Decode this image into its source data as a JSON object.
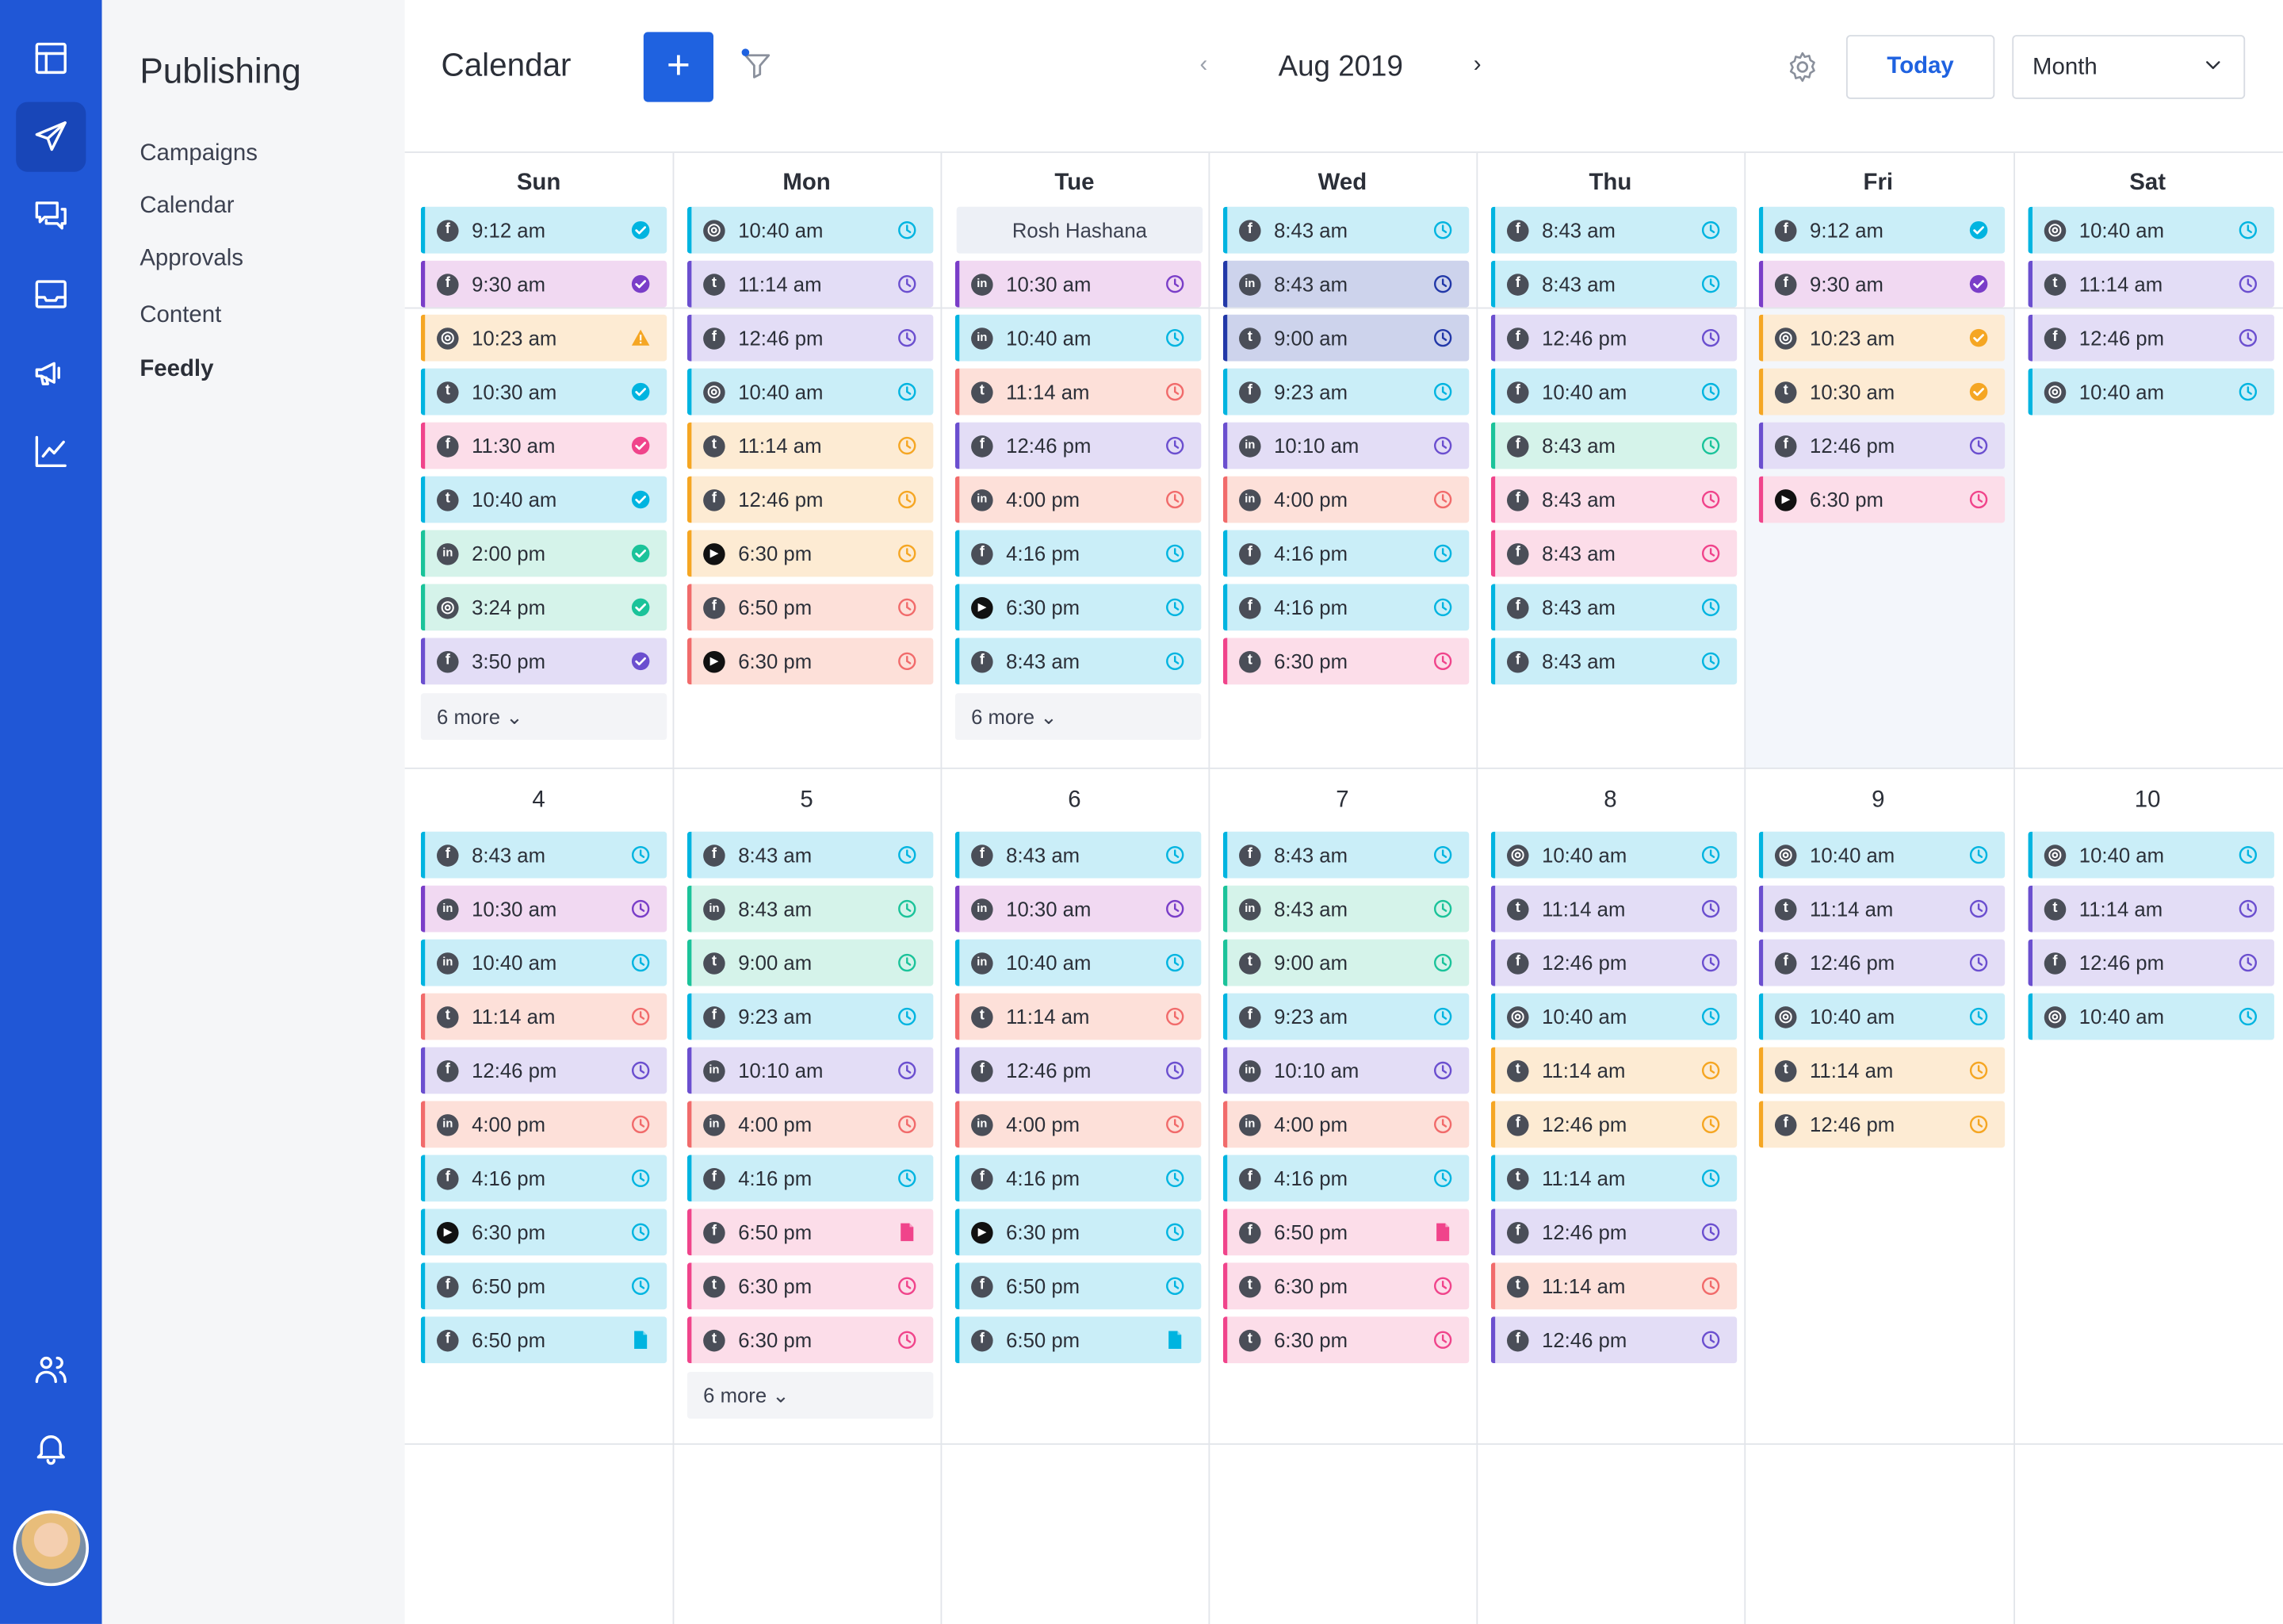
{
  "sidebar": {
    "section_title": "Publishing",
    "nav": [
      "Campaigns",
      "Calendar",
      "Approvals",
      "Content",
      "Feedly"
    ]
  },
  "header": {
    "title": "Calendar",
    "add_label": "+",
    "period": "Aug 2019",
    "today_label": "Today",
    "view_label": "Month"
  },
  "weekdays": [
    "Sun",
    "Mon",
    "Tue",
    "Wed",
    "Thu",
    "Fri",
    "Sat"
  ],
  "week2_days": [
    "4",
    "5",
    "6",
    "7",
    "8",
    "9",
    "10"
  ],
  "colors": {
    "cyan": "#00b4e0",
    "purple": "#7a3ec8",
    "orange": "#f5a623",
    "red": "#f16b6b",
    "pink": "#f0448b",
    "teal": "#1bc39a",
    "lavender": "#6b4fcf",
    "navy": "#2238a8",
    "brand": "#2057d6"
  },
  "week1": [
    {
      "events": [
        [
          "fb",
          "9:12 am",
          "cyan",
          "done"
        ],
        [
          "fb",
          "9:30 am",
          "purple",
          "done"
        ],
        [
          "ig",
          "10:23 am",
          "orange",
          "warn"
        ],
        [
          "tw",
          "10:30 am",
          "cyan",
          "done"
        ],
        [
          "fb",
          "11:30 am",
          "pink",
          "done"
        ],
        [
          "tw",
          "10:40 am",
          "cyan",
          "done"
        ],
        [
          "in",
          "2:00 pm",
          "teal",
          "done"
        ],
        [
          "ig",
          "3:24 pm",
          "teal",
          "done"
        ],
        [
          "fb",
          "3:50 pm",
          "lavender",
          "done"
        ]
      ],
      "more": "6 more"
    },
    {
      "events": [
        [
          "ig",
          "10:40 am",
          "cyan",
          "clock"
        ],
        [
          "tw",
          "11:14 am",
          "lavender",
          "clock"
        ],
        [
          "fb",
          "12:46 pm",
          "lavender",
          "clock"
        ],
        [
          "ig",
          "10:40 am",
          "cyan",
          "clock"
        ],
        [
          "tw",
          "11:14 am",
          "orange",
          "clock"
        ],
        [
          "fb",
          "12:46 pm",
          "orange",
          "clock"
        ],
        [
          "yt",
          "6:30 pm",
          "orange",
          "clock"
        ],
        [
          "fb",
          "6:50 pm",
          "red",
          "clock"
        ],
        [
          "yt",
          "6:30 pm",
          "red",
          "clock"
        ]
      ]
    },
    {
      "holiday": "Rosh Hashana",
      "events": [
        [
          "in",
          "10:30 am",
          "purple",
          "clock"
        ],
        [
          "in",
          "10:40 am",
          "cyan",
          "clock"
        ],
        [
          "tw",
          "11:14 am",
          "red",
          "clock"
        ],
        [
          "fb",
          "12:46 pm",
          "lavender",
          "clock"
        ],
        [
          "in",
          "4:00 pm",
          "red",
          "clock"
        ],
        [
          "fb",
          "4:16 pm",
          "cyan",
          "clock"
        ],
        [
          "yt",
          "6:30 pm",
          "cyan",
          "clock"
        ],
        [
          "fb",
          "8:43 am",
          "cyan",
          "clock"
        ]
      ],
      "more": "6 more"
    },
    {
      "events": [
        [
          "fb",
          "8:43 am",
          "cyan",
          "clock"
        ],
        [
          "in",
          "8:43 am",
          "navy",
          "clock"
        ],
        [
          "tw",
          "9:00 am",
          "navy",
          "clock"
        ],
        [
          "fb",
          "9:23 am",
          "cyan",
          "clock"
        ],
        [
          "in",
          "10:10 am",
          "lavender",
          "clock"
        ],
        [
          "in",
          "4:00 pm",
          "red",
          "clock"
        ],
        [
          "fb",
          "4:16 pm",
          "cyan",
          "clock"
        ],
        [
          "fb",
          "4:16 pm",
          "cyan",
          "clock"
        ],
        [
          "tw",
          "6:30 pm",
          "pink",
          "clock"
        ]
      ]
    },
    {
      "events": [
        [
          "fb",
          "8:43 am",
          "cyan",
          "clock"
        ],
        [
          "fb",
          "8:43 am",
          "cyan",
          "clock"
        ],
        [
          "fb",
          "12:46 pm",
          "lavender",
          "clock"
        ],
        [
          "fb",
          "10:40 am",
          "cyan",
          "clock"
        ],
        [
          "fb",
          "8:43 am",
          "teal",
          "clock"
        ],
        [
          "fb",
          "8:43 am",
          "pink",
          "clock"
        ],
        [
          "fb",
          "8:43 am",
          "pink",
          "clock"
        ],
        [
          "fb",
          "8:43 am",
          "cyan",
          "clock"
        ],
        [
          "fb",
          "8:43 am",
          "cyan",
          "clock"
        ]
      ]
    },
    {
      "events": [
        [
          "fb",
          "9:12 am",
          "cyan",
          "done"
        ],
        [
          "fb",
          "9:30 am",
          "purple",
          "done"
        ],
        [
          "ig",
          "10:23 am",
          "orange",
          "done"
        ],
        [
          "tw",
          "10:30 am",
          "orange",
          "done"
        ],
        [
          "fb",
          "12:46 pm",
          "lavender",
          "clock"
        ],
        [
          "yt",
          "6:30 pm",
          "pink",
          "clock"
        ]
      ]
    },
    {
      "events": [
        [
          "ig",
          "10:40 am",
          "cyan",
          "clock"
        ],
        [
          "tw",
          "11:14 am",
          "lavender",
          "clock"
        ],
        [
          "fb",
          "12:46 pm",
          "lavender",
          "clock"
        ],
        [
          "ig",
          "10:40 am",
          "cyan",
          "clock"
        ]
      ]
    }
  ],
  "week2": [
    {
      "events": [
        [
          "fb",
          "8:43 am",
          "cyan",
          "clock"
        ],
        [
          "in",
          "10:30 am",
          "purple",
          "clock"
        ],
        [
          "in",
          "10:40 am",
          "cyan",
          "clock"
        ],
        [
          "tw",
          "11:14 am",
          "red",
          "clock"
        ],
        [
          "fb",
          "12:46 pm",
          "lavender",
          "clock"
        ],
        [
          "in",
          "4:00 pm",
          "red",
          "clock"
        ],
        [
          "fb",
          "4:16 pm",
          "cyan",
          "clock"
        ],
        [
          "yt",
          "6:30 pm",
          "cyan",
          "clock"
        ],
        [
          "fb",
          "6:50 pm",
          "cyan",
          "clock"
        ],
        [
          "fb",
          "6:50 pm",
          "cyan",
          "doc"
        ]
      ]
    },
    {
      "events": [
        [
          "fb",
          "8:43 am",
          "cyan",
          "clock"
        ],
        [
          "in",
          "8:43 am",
          "teal",
          "clock"
        ],
        [
          "tw",
          "9:00 am",
          "teal",
          "clock"
        ],
        [
          "fb",
          "9:23 am",
          "cyan",
          "clock"
        ],
        [
          "in",
          "10:10 am",
          "lavender",
          "clock"
        ],
        [
          "in",
          "4:00 pm",
          "red",
          "clock"
        ],
        [
          "fb",
          "4:16 pm",
          "cyan",
          "clock"
        ],
        [
          "fb",
          "6:50 pm",
          "pink",
          "doc"
        ],
        [
          "tw",
          "6:30 pm",
          "pink",
          "clock"
        ],
        [
          "tw",
          "6:30 pm",
          "pink",
          "clock"
        ]
      ],
      "more": "6 more"
    },
    {
      "events": [
        [
          "fb",
          "8:43 am",
          "cyan",
          "clock"
        ],
        [
          "in",
          "10:30 am",
          "purple",
          "clock"
        ],
        [
          "in",
          "10:40 am",
          "cyan",
          "clock"
        ],
        [
          "tw",
          "11:14 am",
          "red",
          "clock"
        ],
        [
          "fb",
          "12:46 pm",
          "lavender",
          "clock"
        ],
        [
          "in",
          "4:00 pm",
          "red",
          "clock"
        ],
        [
          "fb",
          "4:16 pm",
          "cyan",
          "clock"
        ],
        [
          "yt",
          "6:30 pm",
          "cyan",
          "clock"
        ],
        [
          "fb",
          "6:50 pm",
          "cyan",
          "clock"
        ],
        [
          "fb",
          "6:50 pm",
          "cyan",
          "doc"
        ]
      ]
    },
    {
      "events": [
        [
          "fb",
          "8:43 am",
          "cyan",
          "clock"
        ],
        [
          "in",
          "8:43 am",
          "teal",
          "clock"
        ],
        [
          "tw",
          "9:00 am",
          "teal",
          "clock"
        ],
        [
          "fb",
          "9:23 am",
          "cyan",
          "clock"
        ],
        [
          "in",
          "10:10 am",
          "lavender",
          "clock"
        ],
        [
          "in",
          "4:00 pm",
          "red",
          "clock"
        ],
        [
          "fb",
          "4:16 pm",
          "cyan",
          "clock"
        ],
        [
          "fb",
          "6:50 pm",
          "pink",
          "doc"
        ],
        [
          "tw",
          "6:30 pm",
          "pink",
          "clock"
        ],
        [
          "tw",
          "6:30 pm",
          "pink",
          "clock"
        ]
      ]
    },
    {
      "events": [
        [
          "ig",
          "10:40 am",
          "cyan",
          "clock"
        ],
        [
          "tw",
          "11:14 am",
          "lavender",
          "clock"
        ],
        [
          "fb",
          "12:46 pm",
          "lavender",
          "clock"
        ],
        [
          "ig",
          "10:40 am",
          "cyan",
          "clock"
        ],
        [
          "tw",
          "11:14 am",
          "orange",
          "clock"
        ],
        [
          "fb",
          "12:46 pm",
          "orange",
          "clock"
        ],
        [
          "tw",
          "11:14 am",
          "cyan",
          "clock"
        ],
        [
          "fb",
          "12:46 pm",
          "lavender",
          "clock"
        ],
        [
          "tw",
          "11:14 am",
          "red",
          "clock"
        ],
        [
          "fb",
          "12:46 pm",
          "lavender",
          "clock"
        ]
      ]
    },
    {
      "events": [
        [
          "ig",
          "10:40 am",
          "cyan",
          "clock"
        ],
        [
          "tw",
          "11:14 am",
          "lavender",
          "clock"
        ],
        [
          "fb",
          "12:46 pm",
          "lavender",
          "clock"
        ],
        [
          "ig",
          "10:40 am",
          "cyan",
          "clock"
        ],
        [
          "tw",
          "11:14 am",
          "orange",
          "clock"
        ],
        [
          "fb",
          "12:46 pm",
          "orange",
          "clock"
        ]
      ]
    },
    {
      "events": [
        [
          "ig",
          "10:40 am",
          "cyan",
          "clock"
        ],
        [
          "tw",
          "11:14 am",
          "lavender",
          "clock"
        ],
        [
          "fb",
          "12:46 pm",
          "lavender",
          "clock"
        ],
        [
          "ig",
          "10:40 am",
          "cyan",
          "clock"
        ]
      ]
    }
  ]
}
